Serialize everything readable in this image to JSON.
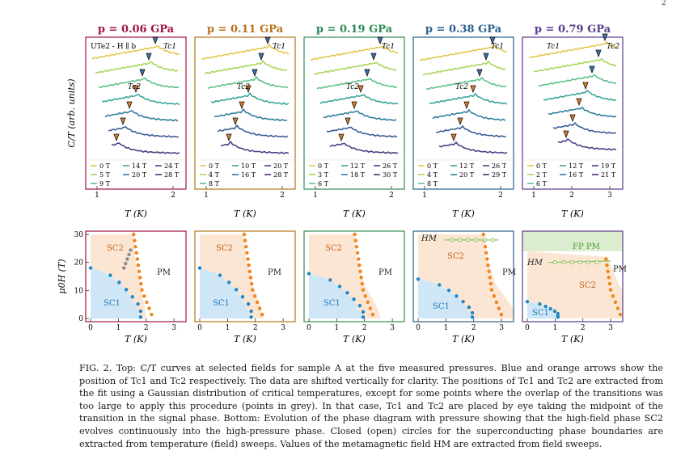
{
  "page_number": "2",
  "ylabel_top": "C/T (arb. units)",
  "ylabel_bottom": "μ0H (T)",
  "xlabel": "T (K)",
  "panels": [
    {
      "pressure": "p = 0.06 GPa",
      "color": "#a0153e",
      "inset_label": "UTe2 - H ∥ b",
      "legend": [
        "0 T",
        "14 T",
        "24 T",
        "5 T",
        "20 T",
        "28 T",
        "9 T"
      ],
      "top_ticks": [
        "1",
        "2"
      ],
      "bottom_ticks": [
        "0",
        "1",
        "2",
        "3"
      ],
      "regions": [
        "SC2",
        "PM",
        "SC1"
      ],
      "tc_labels": [
        "Tc1",
        "Tc2"
      ]
    },
    {
      "pressure": "p = 0.11 GPa",
      "color": "#b8741c",
      "legend": [
        "0 T",
        "10 T",
        "20 T",
        "4 T",
        "16 T",
        "28 T",
        "8 T"
      ],
      "top_ticks": [
        "1",
        "2"
      ],
      "bottom_ticks": [
        "0",
        "1",
        "2",
        "3"
      ],
      "regions": [
        "SC2",
        "PM",
        "SC1"
      ],
      "tc_labels": [
        "Tc1",
        "Tc2"
      ]
    },
    {
      "pressure": "p = 0.19 GPa",
      "color": "#2e8b57",
      "legend": [
        "0 T",
        "12 T",
        "26 T",
        "3 T",
        "18 T",
        "30 T",
        "6 T"
      ],
      "top_ticks": [
        "1",
        "2"
      ],
      "bottom_ticks": [
        "0",
        "1",
        "2",
        "3"
      ],
      "regions": [
        "SC2",
        "PM",
        "SC1"
      ],
      "tc_labels": [
        "Tc1",
        "Tc2"
      ]
    },
    {
      "pressure": "p = 0.38 GPa",
      "color": "#2b5f8a",
      "legend": [
        "0 T",
        "12 T",
        "26 T",
        "4 T",
        "20 T",
        "29 T",
        "8 T"
      ],
      "top_ticks": [
        "1",
        "2"
      ],
      "bottom_ticks": [
        "0",
        "1",
        "2",
        "3"
      ],
      "regions": [
        "HM",
        "SC2",
        "PM",
        "SC1"
      ],
      "tc_labels": [
        "Tc1",
        "Tc2"
      ]
    },
    {
      "pressure": "p = 0.79 GPa",
      "color": "#5b3a8c",
      "legend": [
        "0 T",
        "12 T",
        "19 T",
        "2 T",
        "16 T",
        "21 T",
        "6 T"
      ],
      "top_ticks": [
        "1",
        "2",
        "3"
      ],
      "bottom_ticks": [
        "0",
        "1",
        "2",
        "3"
      ],
      "regions": [
        "FP PM",
        "HM",
        "PM",
        "SC2",
        "SC1"
      ],
      "tc_labels": [
        "Tc1",
        "Tc2"
      ]
    }
  ],
  "phase_yticks": [
    "0",
    "10",
    "20",
    "30"
  ],
  "curve_colors": [
    "#e0c84a",
    "#a8d65a",
    "#5cc28a",
    "#3aa59a",
    "#2f7f9f",
    "#3c5d96",
    "#4e3f86",
    "#5a2d6e"
  ],
  "region_colors": {
    "SC1": "#cfe6f7",
    "SC2": "#fbe6d3",
    "FP": "#dcedcf",
    "SC1_points": "#1e88c9",
    "SC2_points": "#f0841e",
    "grey_points": "#8c8c8c",
    "HM_line": "#8cbf5a"
  },
  "caption": {
    "lead": "FIG. 2. Top: C/T curves at selected fields for sample A at the five measured pressures. Blue and orange arrows show the position of Tc1 and Tc2 respectively. The data are shifted vertically for clarity. The positions of Tc1 and Tc2 are extracted from the fit using a Gaussian distribution of critical temperatures, except for some points where the overlap of the transitions was too large to apply this procedure (points in grey). In that case, Tc1 and Tc2 are placed by eye taking the midpoint of the transition in the signal phase. Bottom: Evolution of the phase diagram with pressure showing that the high-field phase SC2 evolves continuously into the high-pressure phase. Closed (open) circles for the superconducting phase boundaries are extracted from temperature (field) sweeps. Values of the metamagnetic field HM are extracted from field sweeps."
  }
}
